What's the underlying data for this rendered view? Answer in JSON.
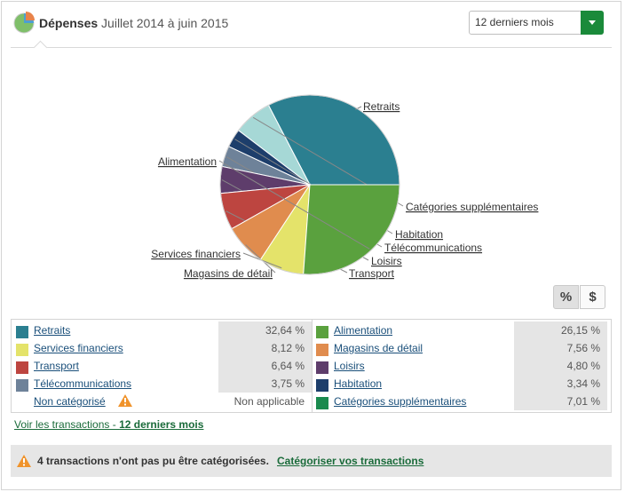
{
  "header": {
    "title": "Dépenses",
    "subtitle": "Juillet 2014 à juin 2015",
    "period_select": {
      "value": "12 derniers mois"
    }
  },
  "chart_data": {
    "type": "pie",
    "slices": [
      {
        "label": "Retraits",
        "value": 32.64,
        "color": "#2b7f90"
      },
      {
        "label": "Catégories supplémentaires",
        "value": 7.01,
        "color": "#a6d8d6"
      },
      {
        "label": "Habitation",
        "value": 3.34,
        "color": "#1d3e6b"
      },
      {
        "label": "Télécommunications",
        "value": 3.75,
        "color": "#6e8299"
      },
      {
        "label": "Loisirs",
        "value": 4.8,
        "color": "#5e3d6b"
      },
      {
        "label": "Transport",
        "value": 6.64,
        "color": "#bd4540"
      },
      {
        "label": "Magasins de détail",
        "value": 7.56,
        "color": "#e08c4e"
      },
      {
        "label": "Services financiers",
        "value": 8.12,
        "color": "#e4e36a"
      },
      {
        "label": "Alimentation",
        "value": 26.15,
        "color": "#5aa13e"
      }
    ]
  },
  "toggle": {
    "percent": "%",
    "dollar": "$"
  },
  "legend": {
    "left": [
      {
        "name": "Retraits",
        "value": "32,64 %",
        "color": "#2b7f90"
      },
      {
        "name": "Services financiers",
        "value": "8,12 %",
        "color": "#e4e36a"
      },
      {
        "name": "Transport",
        "value": "6,64 %",
        "color": "#bd4540"
      },
      {
        "name": "Télécommunications",
        "value": "3,75 %",
        "color": "#6e8299"
      },
      {
        "name": "Non catégorisé",
        "value": "Non applicable",
        "color": ""
      }
    ],
    "right": [
      {
        "name": "Alimentation",
        "value": "26,15 %",
        "color": "#5aa13e"
      },
      {
        "name": "Magasins de détail",
        "value": "7,56 %",
        "color": "#e08c4e"
      },
      {
        "name": "Loisirs",
        "value": "4,80 %",
        "color": "#5e3d6b"
      },
      {
        "name": "Habitation",
        "value": "3,34 %",
        "color": "#1d3e6b"
      },
      {
        "name": "Catégories supplémentaires",
        "value": "7,01 %",
        "color": "#1a8a4e"
      }
    ]
  },
  "links": {
    "view_prefix": "Voir les transactions - ",
    "view_period": "12 derniers mois"
  },
  "notice": {
    "text": "4 transactions n'ont pas pu être catégorisées.",
    "link": "Catégoriser vos transactions",
    "icon": "warning-icon"
  }
}
